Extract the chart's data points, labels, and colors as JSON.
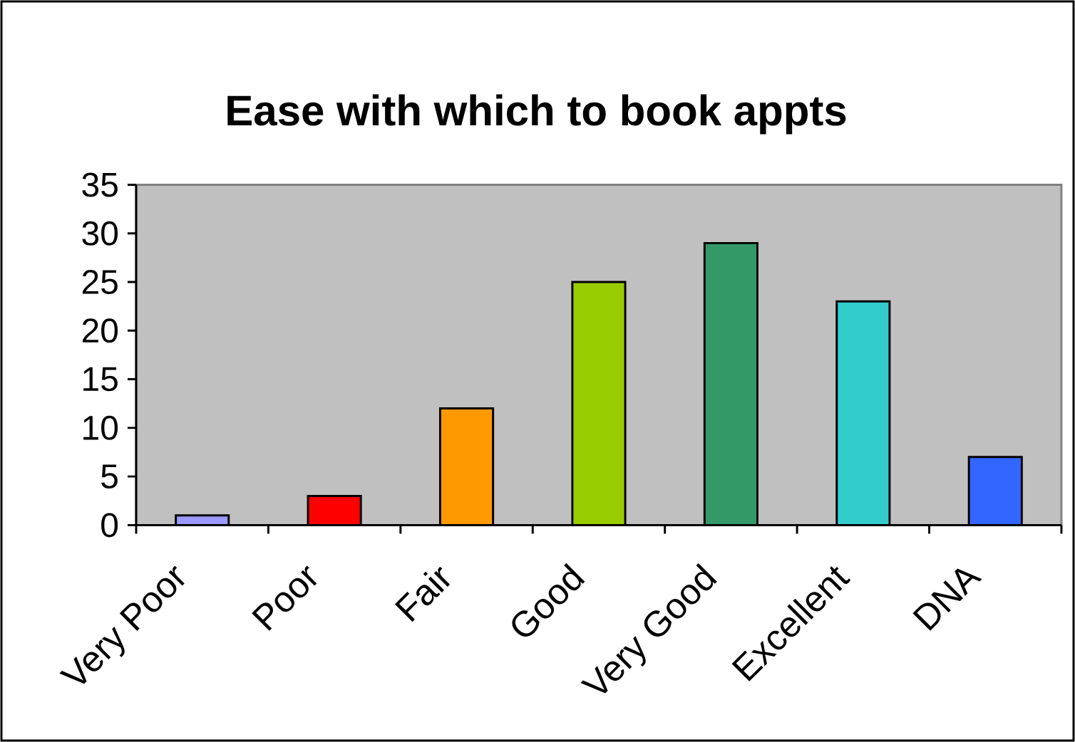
{
  "chart_data": {
    "type": "bar",
    "title": "Ease with which to book appts",
    "categories": [
      "Very Poor",
      "Poor",
      "Fair",
      "Good",
      "Very Good",
      "Excellent",
      "DNA"
    ],
    "values": [
      1,
      3,
      12,
      25,
      29,
      23,
      7
    ],
    "colors": [
      "#9999ff",
      "#ff0000",
      "#ff9900",
      "#99cc00",
      "#339966",
      "#33cccc",
      "#3366ff"
    ],
    "ylim": [
      0,
      35
    ],
    "yticks": [
      0,
      5,
      10,
      15,
      20,
      25,
      30,
      35
    ]
  }
}
